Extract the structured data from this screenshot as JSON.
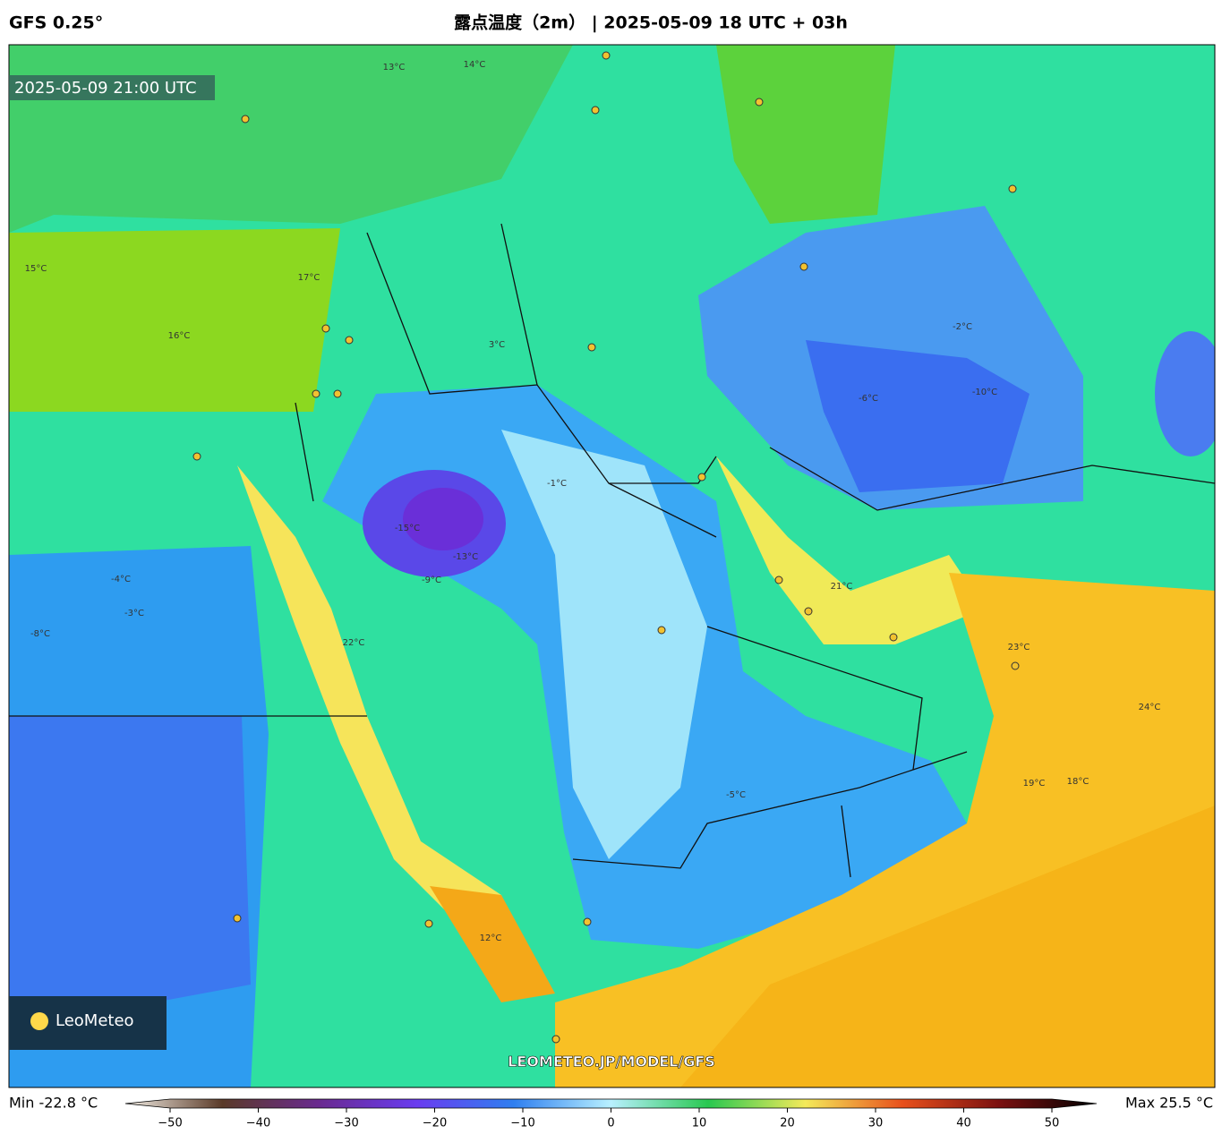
{
  "header": {
    "model": "GFS 0.25°",
    "title": "露点温度（2m） | 2025-05-09 18 UTC + 03h"
  },
  "map": {
    "valid_time": "2025-05-09 21:00 UTC",
    "logo": "LeoMeteo",
    "watermark": "LEOMETEO.JP/MODEL/GFS",
    "contour_labels": [
      "13°C",
      "14°C",
      "17°C",
      "16°C",
      "15°C",
      "-4°C",
      "-8°C",
      "-3°C",
      "-15°C",
      "-13°C",
      "-9°C",
      "-1°C",
      "22°C",
      "21°C",
      "23°C",
      "24°C",
      "-10°C",
      "-6°C",
      "18°C",
      "3°C",
      "-2°C",
      "-5°C",
      "19°C",
      "12°C"
    ]
  },
  "colorbar": {
    "min_label": "Min -22.8 °C",
    "max_label": "Max 25.5 °C",
    "lim": [
      -50,
      50
    ],
    "ticks": [
      {
        "value": -50,
        "label": "−50"
      },
      {
        "value": -40,
        "label": "−40"
      },
      {
        "value": -30,
        "label": "−30"
      },
      {
        "value": -20,
        "label": "−20"
      },
      {
        "value": -10,
        "label": "−10"
      },
      0,
      10,
      20,
      30,
      40,
      50
    ]
  }
}
